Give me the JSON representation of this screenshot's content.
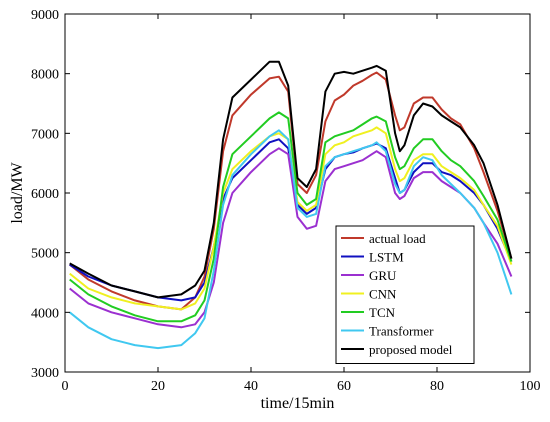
{
  "chart_data": {
    "type": "line",
    "xlabel": "time/15min",
    "ylabel": "load/MW",
    "xlim": [
      0,
      100
    ],
    "ylim": [
      3000,
      9000
    ],
    "xticks": [
      0,
      20,
      40,
      60,
      80,
      100
    ],
    "yticks": [
      3000,
      4000,
      5000,
      6000,
      7000,
      8000,
      9000
    ],
    "grid": false,
    "legend_position": "bottom-right",
    "x": [
      1,
      5,
      10,
      15,
      20,
      25,
      28,
      30,
      32,
      34,
      36,
      40,
      44,
      46,
      48,
      50,
      52,
      54,
      56,
      58,
      60,
      62,
      64,
      66,
      67,
      69,
      71,
      72,
      73,
      75,
      77,
      79,
      81,
      83,
      85,
      88,
      90,
      93,
      96
    ],
    "series": [
      {
        "name": "actual load",
        "color": "#c0392b",
        "values": [
          4800,
          4550,
          4350,
          4200,
          4100,
          4050,
          4250,
          4600,
          5400,
          6700,
          7300,
          7650,
          7920,
          7950,
          7700,
          6150,
          6000,
          6300,
          7200,
          7550,
          7650,
          7800,
          7880,
          7980,
          8020,
          7900,
          7300,
          7050,
          7100,
          7500,
          7600,
          7600,
          7400,
          7250,
          7150,
          6750,
          6350,
          5700,
          4900
        ]
      },
      {
        "name": "LSTM",
        "color": "#1010c0",
        "values": [
          4800,
          4600,
          4450,
          4350,
          4250,
          4200,
          4250,
          4500,
          5100,
          5900,
          6250,
          6550,
          6850,
          6900,
          6750,
          5800,
          5650,
          5750,
          6400,
          6600,
          6650,
          6680,
          6750,
          6800,
          6830,
          6750,
          6250,
          6000,
          6050,
          6350,
          6500,
          6500,
          6350,
          6300,
          6200,
          6000,
          5800,
          5400,
          4850
        ]
      },
      {
        "name": "GRU",
        "color": "#9b30d0",
        "values": [
          4400,
          4150,
          4000,
          3900,
          3800,
          3750,
          3800,
          4000,
          4500,
          5500,
          6000,
          6350,
          6650,
          6750,
          6650,
          5600,
          5400,
          5450,
          6200,
          6400,
          6450,
          6500,
          6550,
          6650,
          6700,
          6600,
          6000,
          5900,
          5950,
          6250,
          6350,
          6350,
          6200,
          6100,
          6000,
          5750,
          5500,
          5150,
          4600
        ]
      },
      {
        "name": "CNN",
        "color": "#f0f020",
        "values": [
          4650,
          4400,
          4250,
          4150,
          4100,
          4050,
          4150,
          4400,
          5100,
          6000,
          6400,
          6700,
          6950,
          7000,
          6900,
          5850,
          5700,
          5800,
          6650,
          6800,
          6850,
          6950,
          7000,
          7050,
          7100,
          7000,
          6400,
          6200,
          6250,
          6550,
          6650,
          6650,
          6450,
          6350,
          6250,
          6050,
          5800,
          5450,
          4800
        ]
      },
      {
        "name": "TCN",
        "color": "#22cc22",
        "values": [
          4550,
          4300,
          4100,
          3950,
          3850,
          3850,
          3950,
          4200,
          4900,
          6100,
          6650,
          6950,
          7250,
          7350,
          7250,
          6000,
          5800,
          5900,
          6850,
          6950,
          7000,
          7050,
          7150,
          7250,
          7280,
          7200,
          6600,
          6400,
          6450,
          6750,
          6900,
          6900,
          6700,
          6550,
          6450,
          6200,
          5950,
          5550,
          4850
        ]
      },
      {
        "name": "Transformer",
        "color": "#40c8f0",
        "values": [
          4000,
          3750,
          3550,
          3450,
          3400,
          3450,
          3650,
          3900,
          4700,
          5800,
          6300,
          6650,
          6950,
          7050,
          6900,
          5750,
          5600,
          5650,
          6450,
          6600,
          6650,
          6700,
          6750,
          6800,
          6850,
          6700,
          6150,
          6000,
          6050,
          6450,
          6600,
          6550,
          6300,
          6150,
          6000,
          5750,
          5500,
          5000,
          4300
        ]
      },
      {
        "name": "proposed model",
        "color": "#000000",
        "values": [
          4820,
          4650,
          4450,
          4350,
          4250,
          4300,
          4450,
          4700,
          5500,
          6900,
          7600,
          7900,
          8200,
          8200,
          7800,
          6250,
          6100,
          6400,
          7700,
          8000,
          8030,
          8000,
          8050,
          8100,
          8130,
          8050,
          7000,
          6700,
          6800,
          7300,
          7500,
          7450,
          7300,
          7200,
          7100,
          6800,
          6500,
          5800,
          4900
        ]
      }
    ]
  }
}
